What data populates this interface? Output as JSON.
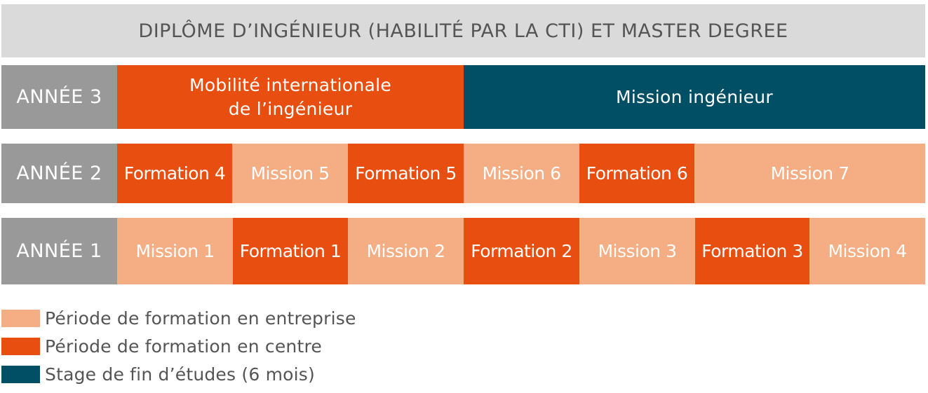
{
  "title": "DIPLÔME D’INGÉNIEUR (HABILITÉ PAR LA CTI) ET MASTER DEGREE",
  "colors": {
    "entreprise": "#f5ad83",
    "centre": "#e84e0f",
    "stage": "#004f65",
    "year_label_bg": "#999999",
    "header_bg": "#dadada"
  },
  "rows": [
    {
      "year": "ANNÉE 3",
      "blocks": [
        {
          "label": "Mobilité internationale de l’ingénieur",
          "line1": "Mobilité internationale",
          "line2": "de l’ingénieur",
          "type": "centre"
        },
        {
          "label": "Mission ingénieur",
          "type": "stage"
        }
      ]
    },
    {
      "year": "ANNÉE 2",
      "blocks": [
        {
          "label": "Formation 4",
          "type": "centre"
        },
        {
          "label": "Mission 5",
          "type": "entreprise"
        },
        {
          "label": "Formation 5",
          "type": "centre"
        },
        {
          "label": "Mission 6",
          "type": "entreprise"
        },
        {
          "label": "Formation 6",
          "type": "centre"
        },
        {
          "label": "Mission 7",
          "type": "entreprise"
        }
      ]
    },
    {
      "year": "ANNÉE 1",
      "blocks": [
        {
          "label": "Mission 1",
          "type": "entreprise"
        },
        {
          "label": "Formation 1",
          "type": "centre"
        },
        {
          "label": "Mission 2",
          "type": "entreprise"
        },
        {
          "label": "Formation 2",
          "type": "centre"
        },
        {
          "label": "Mission 3",
          "type": "entreprise"
        },
        {
          "label": "Formation 3",
          "type": "centre"
        },
        {
          "label": "Mission 4",
          "type": "entreprise"
        }
      ]
    }
  ],
  "legend": [
    {
      "label": "Période de formation en entreprise",
      "type": "entreprise"
    },
    {
      "label": "Période de formation en centre",
      "type": "centre"
    },
    {
      "label": "Stage de fin d’études (6 mois)",
      "type": "stage"
    }
  ]
}
